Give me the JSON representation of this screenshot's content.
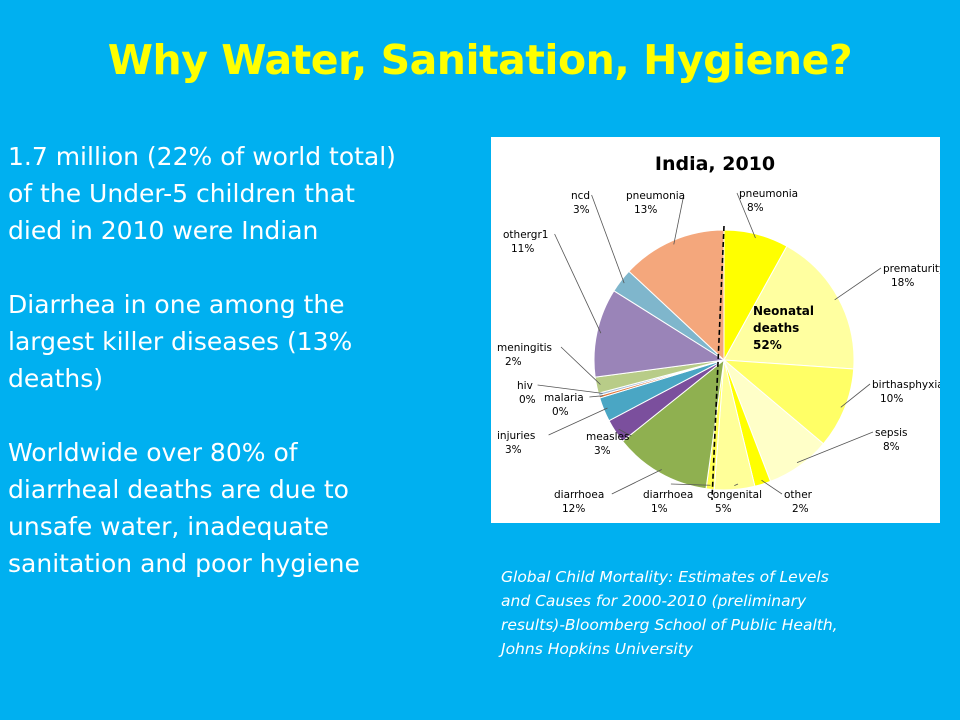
{
  "slide": {
    "title": "Why Water, Sanitation, Hygiene?",
    "paragraphs": [
      [
        "1.7 million (22% of world total)",
        "of the Under-5 children that",
        "died in 2010 were Indian"
      ],
      [
        "Diarrhea in one among the",
        "largest killer diseases (13%",
        "deaths)"
      ],
      [
        "Worldwide over 80% of",
        "diarrheal deaths are due to",
        "unsafe water, inadequate",
        "sanitation and poor hygiene"
      ]
    ],
    "source_lines": [
      "Global Child Mortality: Estimates of Levels",
      "and Causes for 2000-2010 (preliminary",
      "results)-Bloomberg School of Public Health,",
      "Johns Hopkins University"
    ]
  },
  "chart_data": {
    "type": "pie",
    "title": "India, 2010",
    "center_label": [
      "Neonatal",
      "deaths",
      "52%"
    ],
    "neonatal_share": 52,
    "slices": [
      {
        "name": "pneumonia",
        "pct_label": "8%",
        "value": 8,
        "color": "#ffff00",
        "group": "neonatal"
      },
      {
        "name": "prematurity",
        "pct_label": "18%",
        "value": 18,
        "color": "#ffffa0",
        "group": "neonatal"
      },
      {
        "name": "birthasphyxia",
        "pct_label": "10%",
        "value": 10,
        "color": "#ffff66",
        "group": "neonatal"
      },
      {
        "name": "sepsis",
        "pct_label": "8%",
        "value": 8,
        "color": "#ffffc8",
        "group": "neonatal"
      },
      {
        "name": "other",
        "pct_label": "2%",
        "value": 2,
        "color": "#ffff00",
        "group": "neonatal"
      },
      {
        "name": "congenital",
        "pct_label": "5%",
        "value": 5,
        "color": "#ffff99",
        "group": "neonatal"
      },
      {
        "name": "diarrhoea",
        "pct_label": "1%",
        "value": 1,
        "color": "#ffff50",
        "group": "neonatal"
      },
      {
        "name": "diarrhoea",
        "pct_label": "12%",
        "value": 12,
        "color": "#8fb050",
        "group": "postneonatal"
      },
      {
        "name": "measles",
        "pct_label": "3%",
        "value": 3,
        "color": "#7b4f9d",
        "group": "postneonatal"
      },
      {
        "name": "injuries",
        "pct_label": "3%",
        "value": 3,
        "color": "#4aa6c4",
        "group": "postneonatal"
      },
      {
        "name": "malaria",
        "pct_label": "0%",
        "value": 0.3,
        "color": "#e07438",
        "group": "postneonatal"
      },
      {
        "name": "hiv",
        "pct_label": "0%",
        "value": 0.3,
        "color": "#a0bcd8",
        "group": "postneonatal"
      },
      {
        "name": "meningitis",
        "pct_label": "2%",
        "value": 2,
        "color": "#b8cc88",
        "group": "postneonatal"
      },
      {
        "name": "othergr1",
        "pct_label": "11%",
        "value": 11,
        "color": "#9a84b8",
        "group": "postneonatal"
      },
      {
        "name": "ncd",
        "pct_label": "3%",
        "value": 3,
        "color": "#7fb6cc",
        "group": "postneonatal"
      },
      {
        "name": "pneumonia",
        "pct_label": "13%",
        "value": 13,
        "color": "#f4a77c",
        "group": "postneonatal"
      }
    ]
  }
}
